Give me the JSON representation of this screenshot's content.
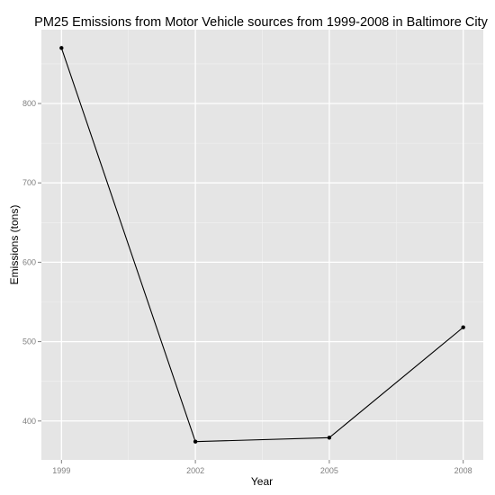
{
  "chart_data": {
    "type": "line",
    "title": "PM25 Emissions from Motor Vehicle sources from 1999-2008 in Baltimore City",
    "xlabel": "Year",
    "ylabel": "Emissions (tons)",
    "x": [
      1999,
      2002,
      2005,
      2008
    ],
    "x_ticks": [
      "1999",
      "2002",
      "2005",
      "2008"
    ],
    "y_ticks": [
      "400",
      "500",
      "600",
      "700",
      "800"
    ],
    "xlim": [
      1998.55,
      2008.45
    ],
    "ylim": [
      351,
      893
    ],
    "series": [
      {
        "values": [
          870,
          374,
          379,
          518
        ]
      }
    ],
    "grid": true,
    "colors": {
      "panel": "#e5e5e5",
      "grid_major": "#ffffff",
      "grid_minor": "#f2f2f2",
      "line": "#000000",
      "tick": "#7f7f7f"
    }
  }
}
